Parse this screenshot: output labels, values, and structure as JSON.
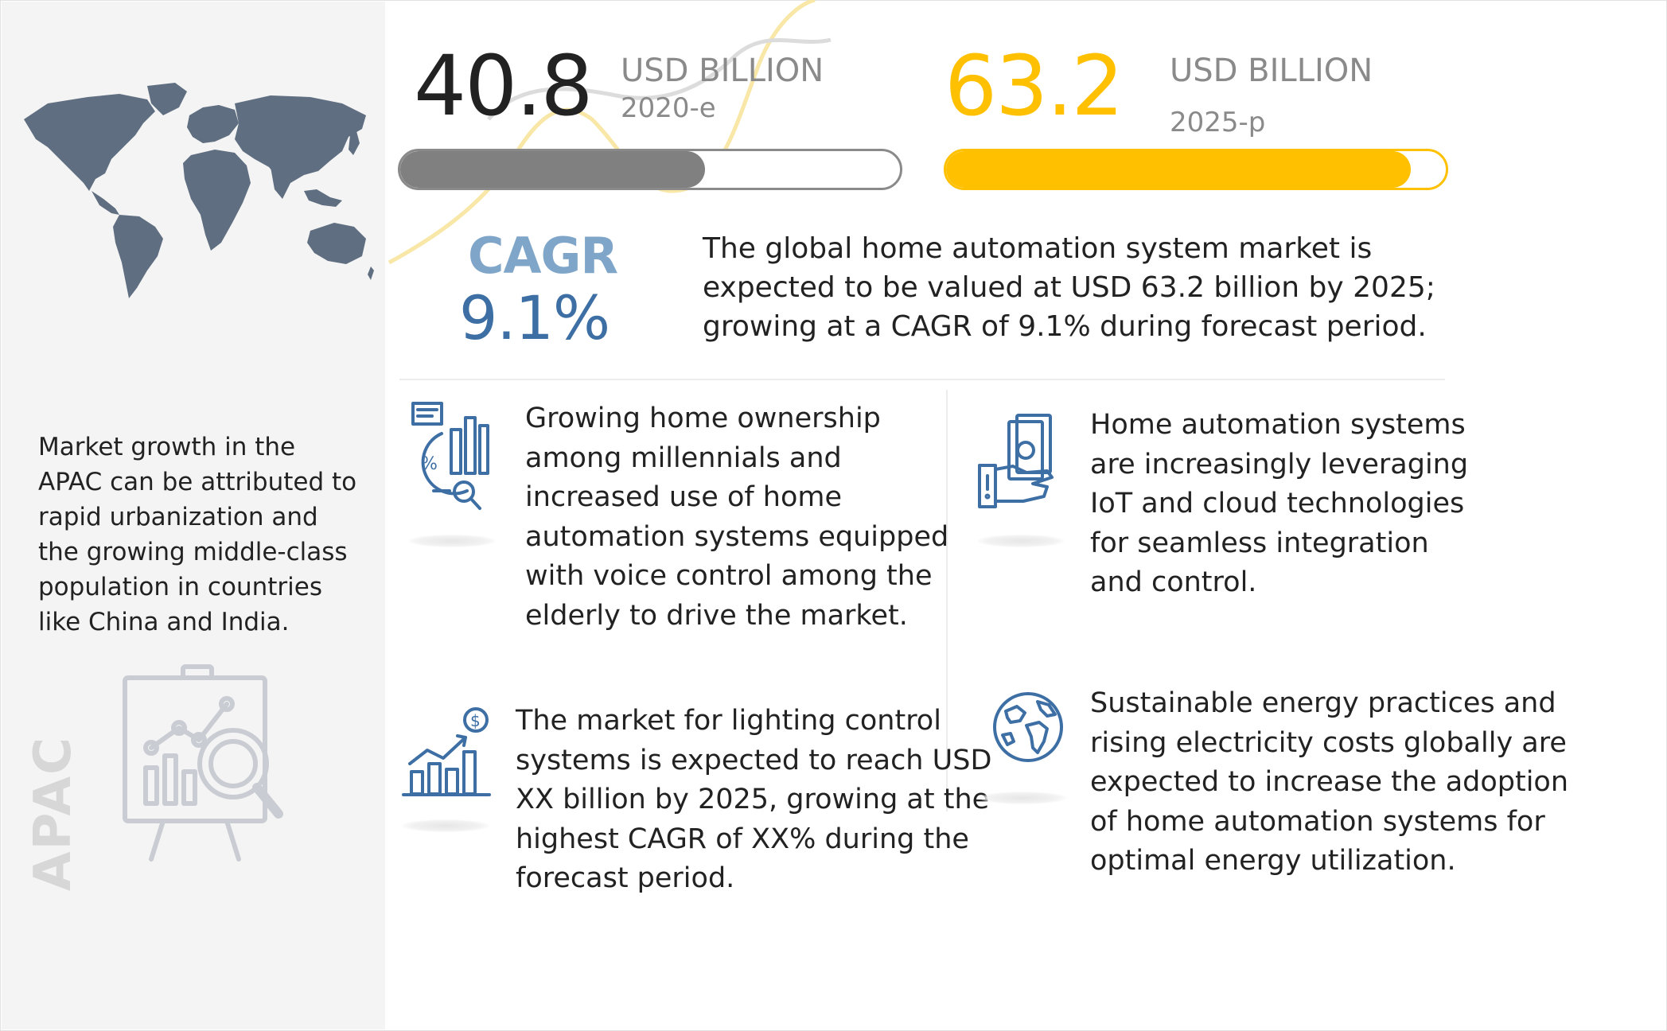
{
  "region": {
    "description": "Market growth in the APAC can be attributed to rapid urbanization and the growing middle-class population in countries like China and India.",
    "label": "APAC"
  },
  "stats": [
    {
      "value": "40.8",
      "unit": "USD BILLION",
      "year": "2020-e",
      "fill_fraction": 0.61,
      "color": "#808080"
    },
    {
      "value": "63.2",
      "unit": "USD BILLION",
      "year": "2025-p",
      "fill_fraction": 0.93,
      "color": "#ffc000"
    }
  ],
  "cagr": {
    "label": "CAGR",
    "value": "9.1%"
  },
  "summary": "The global home automation system market is expected to be valued at USD 63.2 billion by 2025; growing at a CAGR of 9.1% during forecast period.",
  "points": [
    {
      "text": "Growing home ownership among millennials and increased use of home automation systems equipped with voice control among the elderly to drive the market.",
      "icon": "analytics-report-icon"
    },
    {
      "text": "Home automation systems are increasingly leveraging IoT and cloud technologies for seamless integration and control.",
      "icon": "money-hand-icon"
    },
    {
      "text": "The market for lighting control systems is expected to reach USD XX billion by 2025, growing at the highest CAGR of XX% during the forecast period.",
      "icon": "growth-chart-icon"
    },
    {
      "text": "Sustainable energy practices and rising electricity costs globally are expected to increase the adoption of home automation systems for optimal energy utilization.",
      "icon": "globe-icon"
    }
  ],
  "colors": {
    "accent_blue": "#3d6fa5",
    "accent_yellow": "#ffc000",
    "gray": "#808080",
    "sidebar_bg": "#f4f4f4"
  }
}
